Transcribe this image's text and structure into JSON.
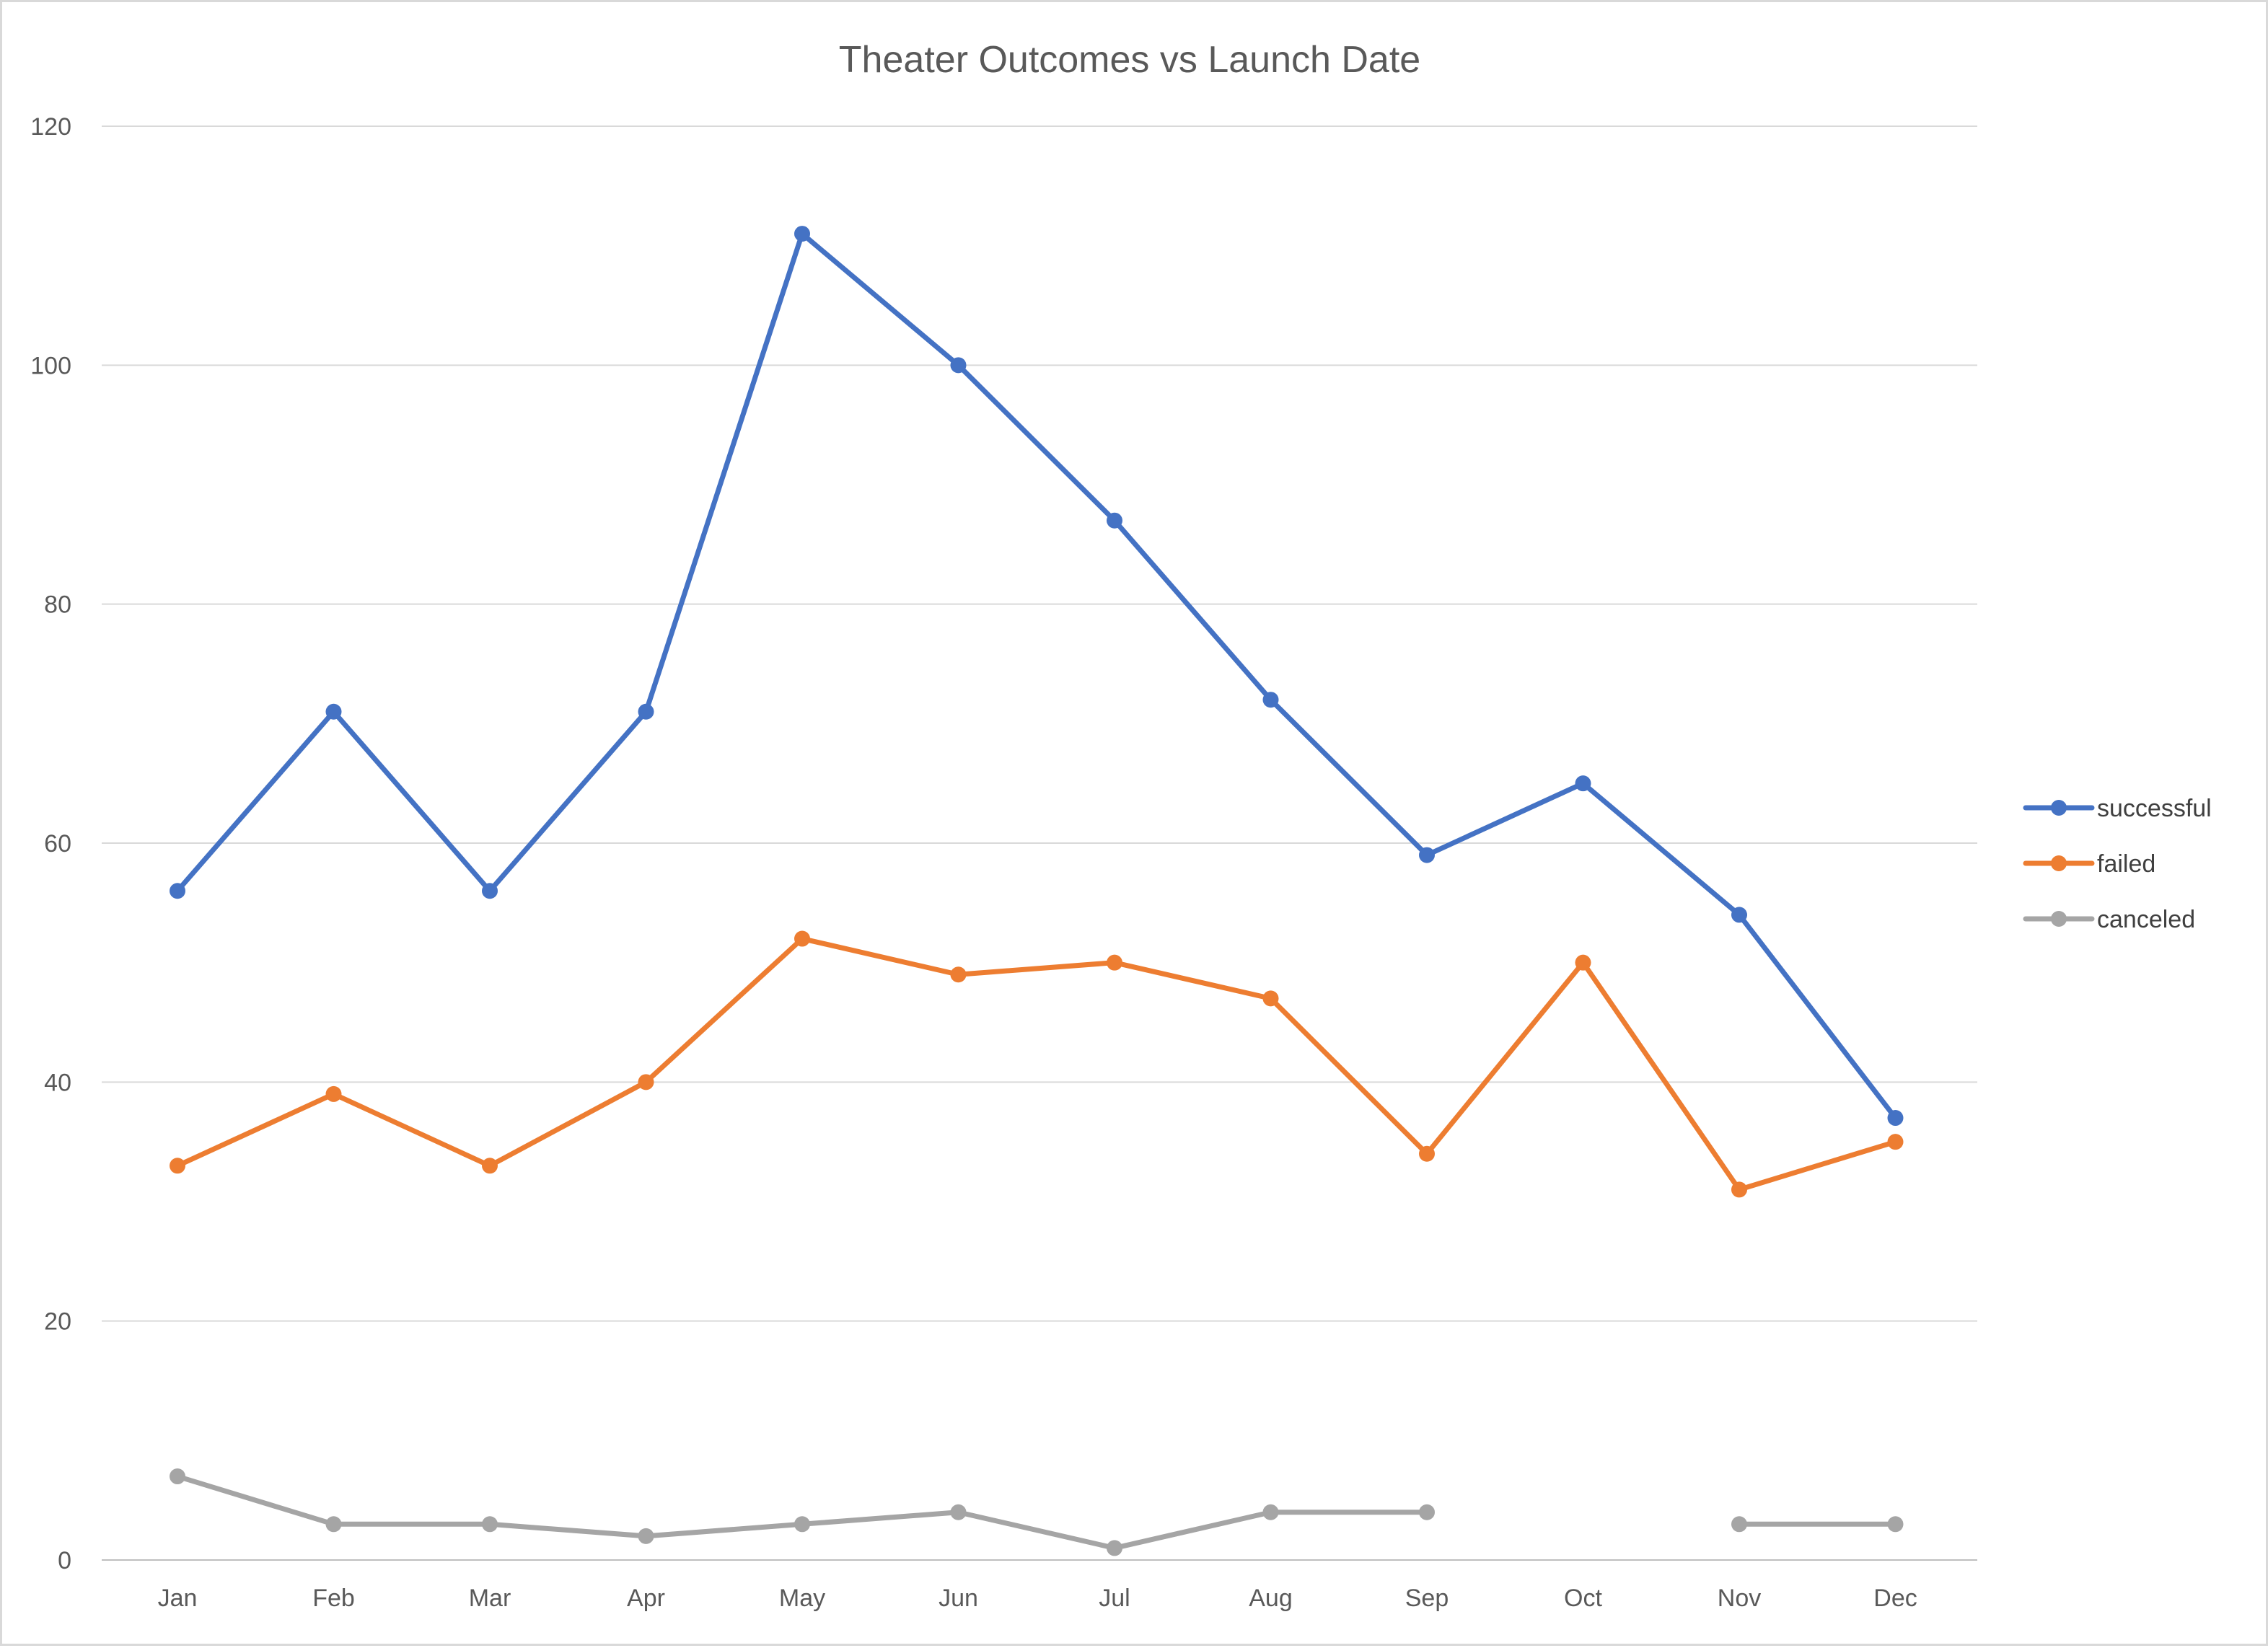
{
  "chart_data": {
    "type": "line",
    "title": "Theater Outcomes vs Launch Date",
    "xlabel": "",
    "ylabel": "",
    "categories": [
      "Jan",
      "Feb",
      "Mar",
      "Apr",
      "May",
      "Jun",
      "Jul",
      "Aug",
      "Sep",
      "Oct",
      "Nov",
      "Dec"
    ],
    "ylim": [
      0,
      120
    ],
    "yticks": [
      0,
      20,
      40,
      60,
      80,
      100,
      120
    ],
    "grid": true,
    "legend_position": "right",
    "series": [
      {
        "name": "successful",
        "color": "#4472c4",
        "values": [
          56,
          71,
          56,
          71,
          111,
          100,
          87,
          72,
          59,
          65,
          54,
          37
        ]
      },
      {
        "name": "failed",
        "color": "#ed7d31",
        "values": [
          33,
          39,
          33,
          40,
          52,
          49,
          50,
          47,
          34,
          50,
          31,
          35
        ]
      },
      {
        "name": "canceled",
        "color": "#a5a5a5",
        "values": [
          7,
          3,
          3,
          2,
          3,
          4,
          1,
          4,
          4,
          null,
          3,
          3
        ]
      }
    ]
  }
}
